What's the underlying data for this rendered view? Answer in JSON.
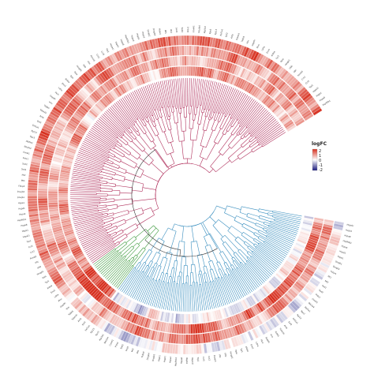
{
  "chart_data": {
    "type": "heatmap",
    "layout": "circular heatmap with dendrogram",
    "title": "",
    "legend": {
      "title": "logFC",
      "ticks": [
        2,
        1,
        0,
        -1,
        -2
      ],
      "range": [
        -2,
        2
      ],
      "colors": {
        "high": "#d7301f",
        "mid": "#ffffff",
        "low": "#1a1a7e"
      },
      "placement": "right"
    },
    "rings": 4,
    "gap_degrees": [
      58,
      100
    ],
    "cluster_colors": [
      "#3a8fbf",
      "#3f9b3f",
      "#b0305c"
    ],
    "root_color": "#333333",
    "cluster_leaf_counts": [
      120,
      18,
      190
    ],
    "labeled_genes": [
      "Hspa1l",
      "Hspb1",
      "Hspa8",
      "Hsp90b1",
      "Hspa4",
      "Hspd1",
      "Hspe1",
      "Dnajb1",
      "Dnajb4",
      "Fkbp4",
      "Mt1",
      "Mt2",
      "Sod1",
      "Sod2",
      "Prdx1",
      "Cox4i1",
      "Ndufa4",
      "Atp5a1",
      "Rps3",
      "Rpl13",
      "Eef1a1",
      "Eef2",
      "Actb",
      "Tuba1b",
      "Tubb5",
      "Vim",
      "Gapdh",
      "Pkm",
      "Ldha",
      "Eno1",
      "Aldoa",
      "Tpi1",
      "Ppia",
      "Hmgb1",
      "Ubb",
      "Ubc",
      "Psmb5",
      "Cct2",
      "Cct5",
      "Tcp1"
    ],
    "gene_label_color": "#333333"
  }
}
